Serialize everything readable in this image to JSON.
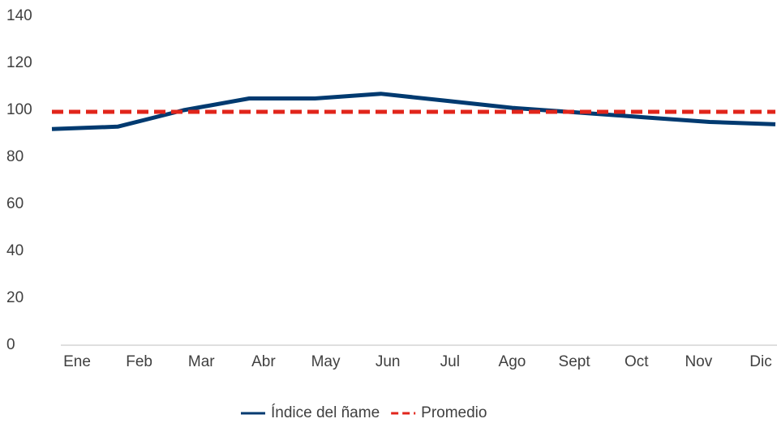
{
  "chart_data": {
    "type": "line",
    "categories": [
      "Ene",
      "Feb",
      "Mar",
      "Abr",
      "May",
      "Jun",
      "Jul",
      "Ago",
      "Sept",
      "Oct",
      "Nov",
      "Dic"
    ],
    "series": [
      {
        "name": "Índice del ñame",
        "color": "#003a70",
        "dash": false,
        "values": [
          92,
          93,
          100,
          105,
          105,
          107,
          104,
          101,
          99,
          97,
          95,
          94
        ]
      },
      {
        "name": "Promedio",
        "color": "#e1251b",
        "dash": true,
        "values": [
          99.3,
          99.3,
          99.3,
          99.3,
          99.3,
          99.3,
          99.3,
          99.3,
          99.3,
          99.3,
          99.3,
          99.3
        ]
      }
    ],
    "ylim": [
      0,
      140
    ],
    "yticks": [
      0,
      20,
      40,
      60,
      80,
      100,
      120,
      140
    ],
    "grid": false,
    "legend": "bottom"
  }
}
